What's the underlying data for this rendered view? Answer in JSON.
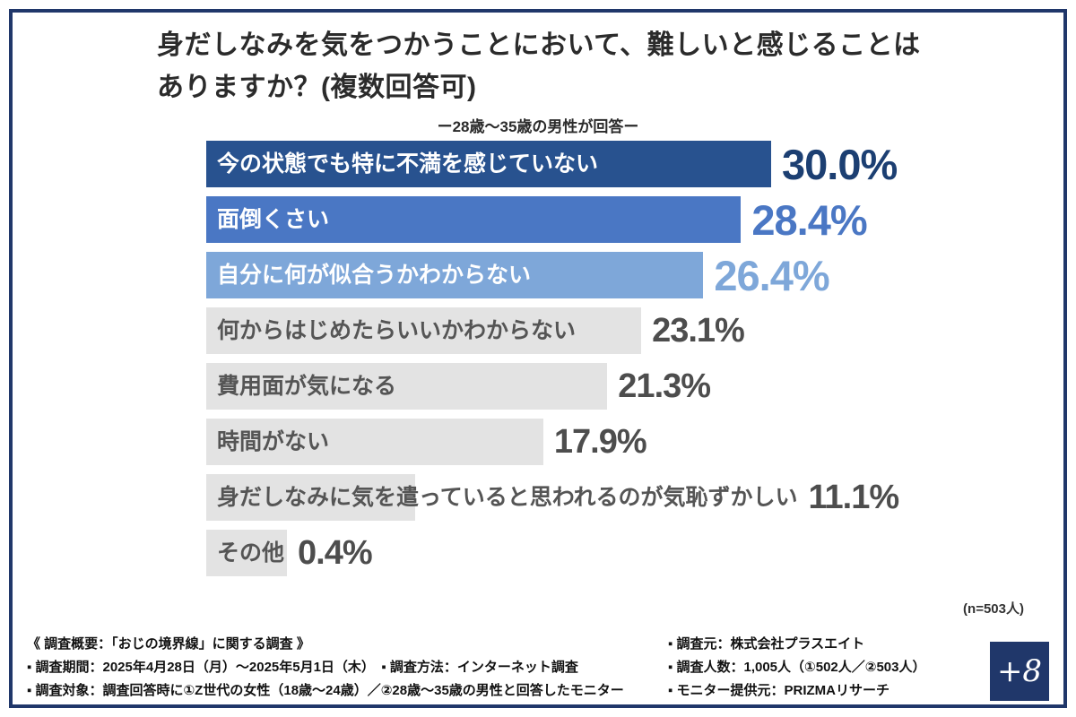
{
  "title": {
    "line1": "身だしなみを気をつかうことにおいて、難しいと感じることは",
    "line2": "ありますか？(複数回答可)",
    "subtitle": "ー28歳〜35歳の男性が回答ー"
  },
  "chart_data": {
    "type": "bar",
    "orientation": "horizontal",
    "title": "身だしなみを気をつかうことにおいて、難しいと感じることはありますか？(複数回答可)",
    "subtitle": "ー28歳〜35歳の男性が回答ー",
    "xlim": [
      0,
      30
    ],
    "categories": [
      "今の状態でも特に不満を感じていない",
      "面倒くさい",
      "自分に何が似合うかわからない",
      "何からはじめたらいいかわからない",
      "費用面が気になる",
      "時間がない",
      "身だしなみに気を遣っていると思われるのが気恥ずかしい",
      "その他"
    ],
    "values": [
      30.0,
      28.4,
      26.4,
      23.1,
      21.3,
      17.9,
      11.1,
      0.4
    ],
    "rows": [
      {
        "label": "今の状態でも特に不満を感じていない",
        "value": 30.0,
        "value_label": "30.0%",
        "bar_color": "#28528f",
        "label_color": "#ffffff",
        "value_color": "#1c3f72",
        "emphasis": true
      },
      {
        "label": "面倒くさい",
        "value": 28.4,
        "value_label": "28.4%",
        "bar_color": "#4a77c4",
        "label_color": "#ffffff",
        "value_color": "#4a77c4",
        "emphasis": true
      },
      {
        "label": "自分に何が似合うかわからない",
        "value": 26.4,
        "value_label": "26.4%",
        "bar_color": "#7ea7d9",
        "label_color": "#ffffff",
        "value_color": "#7ea7d9",
        "emphasis": true
      },
      {
        "label": "何からはじめたらいいかわからない",
        "value": 23.1,
        "value_label": "23.1%",
        "bar_color": "#e3e3e3",
        "label_color": "#555555",
        "value_color": "#4d4d4d",
        "emphasis": false
      },
      {
        "label": "費用面が気になる",
        "value": 21.3,
        "value_label": "21.3%",
        "bar_color": "#e3e3e3",
        "label_color": "#555555",
        "value_color": "#4d4d4d",
        "emphasis": false
      },
      {
        "label": "時間がない",
        "value": 17.9,
        "value_label": "17.9%",
        "bar_color": "#e3e3e3",
        "label_color": "#555555",
        "value_color": "#4d4d4d",
        "emphasis": false
      },
      {
        "label": "身だしなみに気を遣っていると思われるのが気恥ずかしい",
        "value": 11.1,
        "value_label": "11.1%",
        "bar_color": "#e3e3e3",
        "label_color": "#555555",
        "value_color": "#4d4d4d",
        "emphasis": false
      },
      {
        "label": "その他",
        "value": 0.4,
        "value_label": "0.4%",
        "bar_color": "#e3e3e3",
        "label_color": "#555555",
        "value_color": "#4d4d4d",
        "emphasis": false
      }
    ],
    "note": "(n=503人)"
  },
  "footer": {
    "left_lines": [
      "《 調査概要：「おじの境界線」に関する調査 》",
      "▪ 調査期間：2025年4月28日（月）〜2025年5月1日（木）　▪ 調査方法：インターネット調査",
      "▪ 調査対象：調査回答時に①Z世代の女性（18歳〜24歳）／②28歳〜35歳の男性と回答したモニター"
    ],
    "right_lines": [
      "▪ 調査元：株式会社プラスエイト",
      "▪ 調査人数：1,005人（①502人／②503人）",
      "▪ モニター提供元：PRIZMAリサーチ"
    ]
  },
  "logo": {
    "text": "+8"
  },
  "colors": {
    "frame": "#20376a",
    "bar_dark": "#28528f",
    "bar_medium": "#4a77c4",
    "bar_light": "#7ea7d9",
    "bar_gray": "#e3e3e3",
    "text_dark": "#2b2b2b"
  }
}
